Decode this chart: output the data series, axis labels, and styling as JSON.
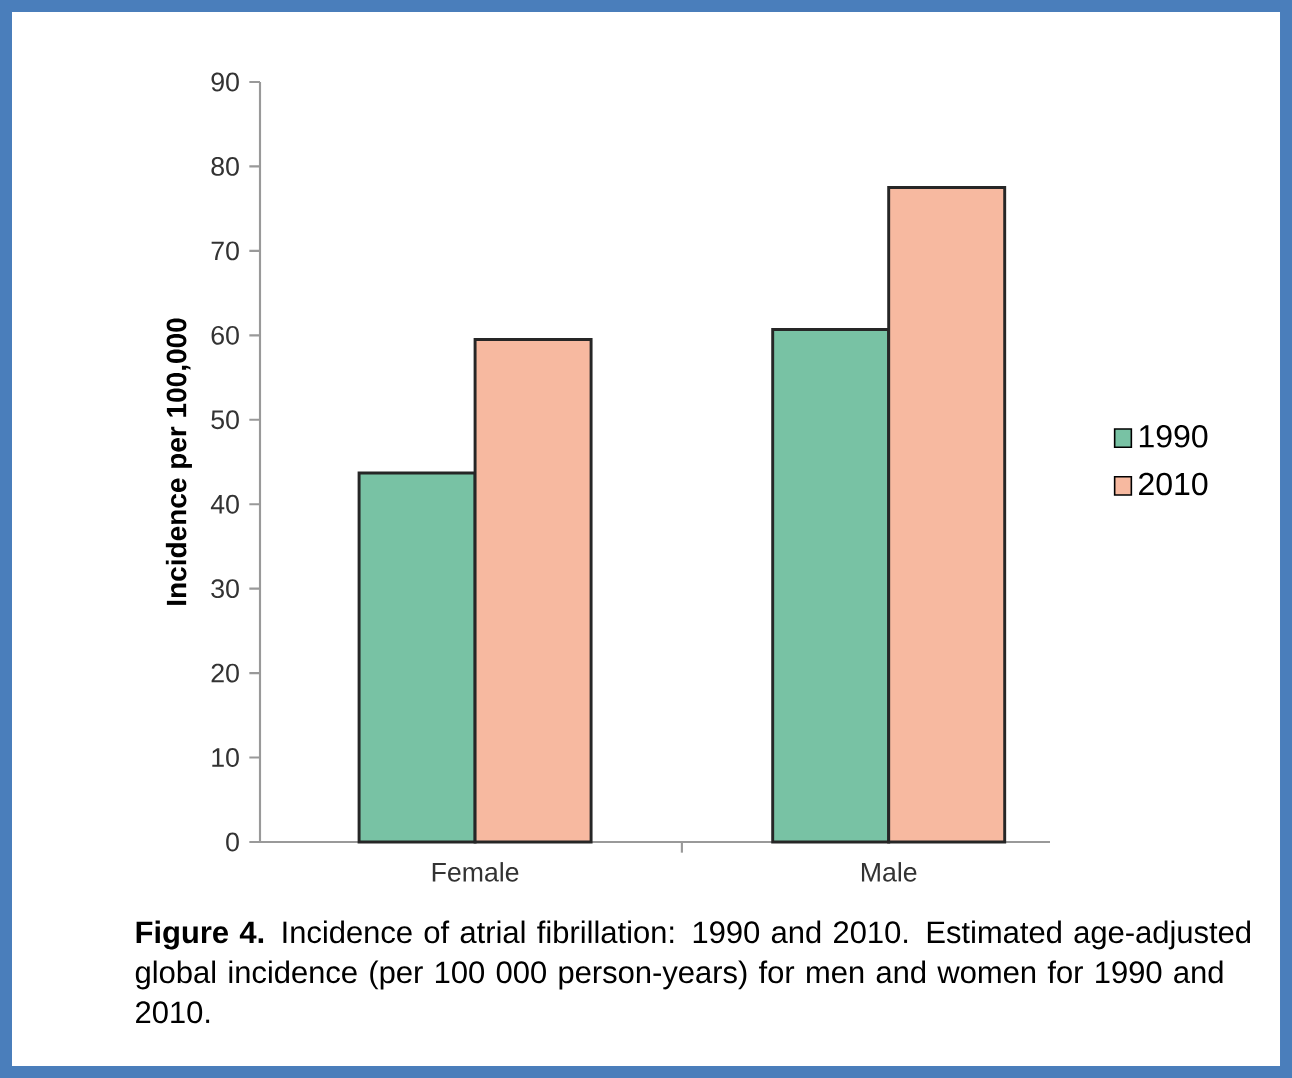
{
  "chart_data": {
    "type": "bar",
    "categories": [
      "Female",
      "Male"
    ],
    "series": [
      {
        "name": "1990",
        "color": "#78c2a4",
        "values": [
          43.7,
          60.7
        ]
      },
      {
        "name": "2010",
        "color": "#f7b9a0",
        "values": [
          59.5,
          77.5
        ]
      }
    ],
    "ylabel": "Incidence per 100,000",
    "ylim": [
      0,
      90
    ],
    "yticks": [
      0,
      10,
      20,
      30,
      40,
      50,
      60,
      70,
      80,
      90
    ],
    "legend": "right",
    "grid": false,
    "annotations": [
      "**Figure 4.** Incidence of atrial fibrillation: 1990 and 2010. Estimated age-adjusted global incidence (per 100 000 person-years) for men and women for 1990 and 2010."
    ]
  }
}
